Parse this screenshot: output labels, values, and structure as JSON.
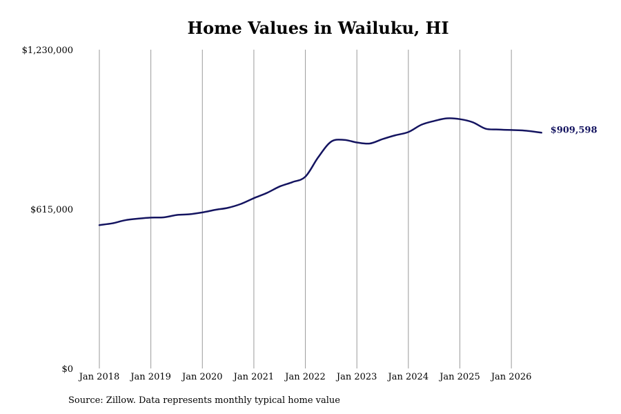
{
  "title": "Home Values in Wailuku, HI",
  "source": "Source: Zillow. Data represents monthly typical home value",
  "colors": {
    "line": "#141460",
    "grid": "#9a9a9a",
    "end_label": "#141460"
  },
  "chart_data": {
    "type": "line",
    "title": "Home Values in Wailuku, HI",
    "xlabel": "",
    "ylabel": "",
    "grid": "vertical",
    "xlim": [
      "2018-01",
      "2026-08"
    ],
    "ylim": [
      0,
      1230000
    ],
    "x_ticks": [
      "Jan 2018",
      "Jan 2019",
      "Jan 2020",
      "Jan 2021",
      "Jan 2022",
      "Jan 2023",
      "Jan 2024",
      "Jan 2025",
      "Jan 2026"
    ],
    "y_ticks": [
      {
        "value": 0,
        "label": "$0"
      },
      {
        "value": 615000,
        "label": "$615,000"
      },
      {
        "value": 1230000,
        "label": "$1,230,000"
      }
    ],
    "end_label": "$909,598",
    "series": [
      {
        "x": [
          "2018-01",
          "2018-04",
          "2018-07",
          "2018-10",
          "2019-01",
          "2019-04",
          "2019-07",
          "2019-10",
          "2020-01",
          "2020-04",
          "2020-07",
          "2020-10",
          "2021-01",
          "2021-04",
          "2021-07",
          "2021-10",
          "2022-01",
          "2022-04",
          "2022-07",
          "2022-10",
          "2023-01",
          "2023-04",
          "2023-07",
          "2023-10",
          "2024-01",
          "2024-04",
          "2024-07",
          "2024-10",
          "2025-01",
          "2025-04",
          "2025-07",
          "2025-10",
          "2026-01",
          "2026-04",
          "2026-08"
        ],
        "values": [
          553000,
          560000,
          572000,
          578000,
          582000,
          583000,
          592000,
          595000,
          602000,
          612000,
          620000,
          635000,
          657000,
          677000,
          702000,
          719000,
          740000,
          815000,
          875000,
          882000,
          872000,
          868000,
          885000,
          900000,
          912000,
          940000,
          955000,
          965000,
          962000,
          950000,
          925000,
          922000,
          920000,
          918000,
          909598
        ]
      }
    ]
  }
}
